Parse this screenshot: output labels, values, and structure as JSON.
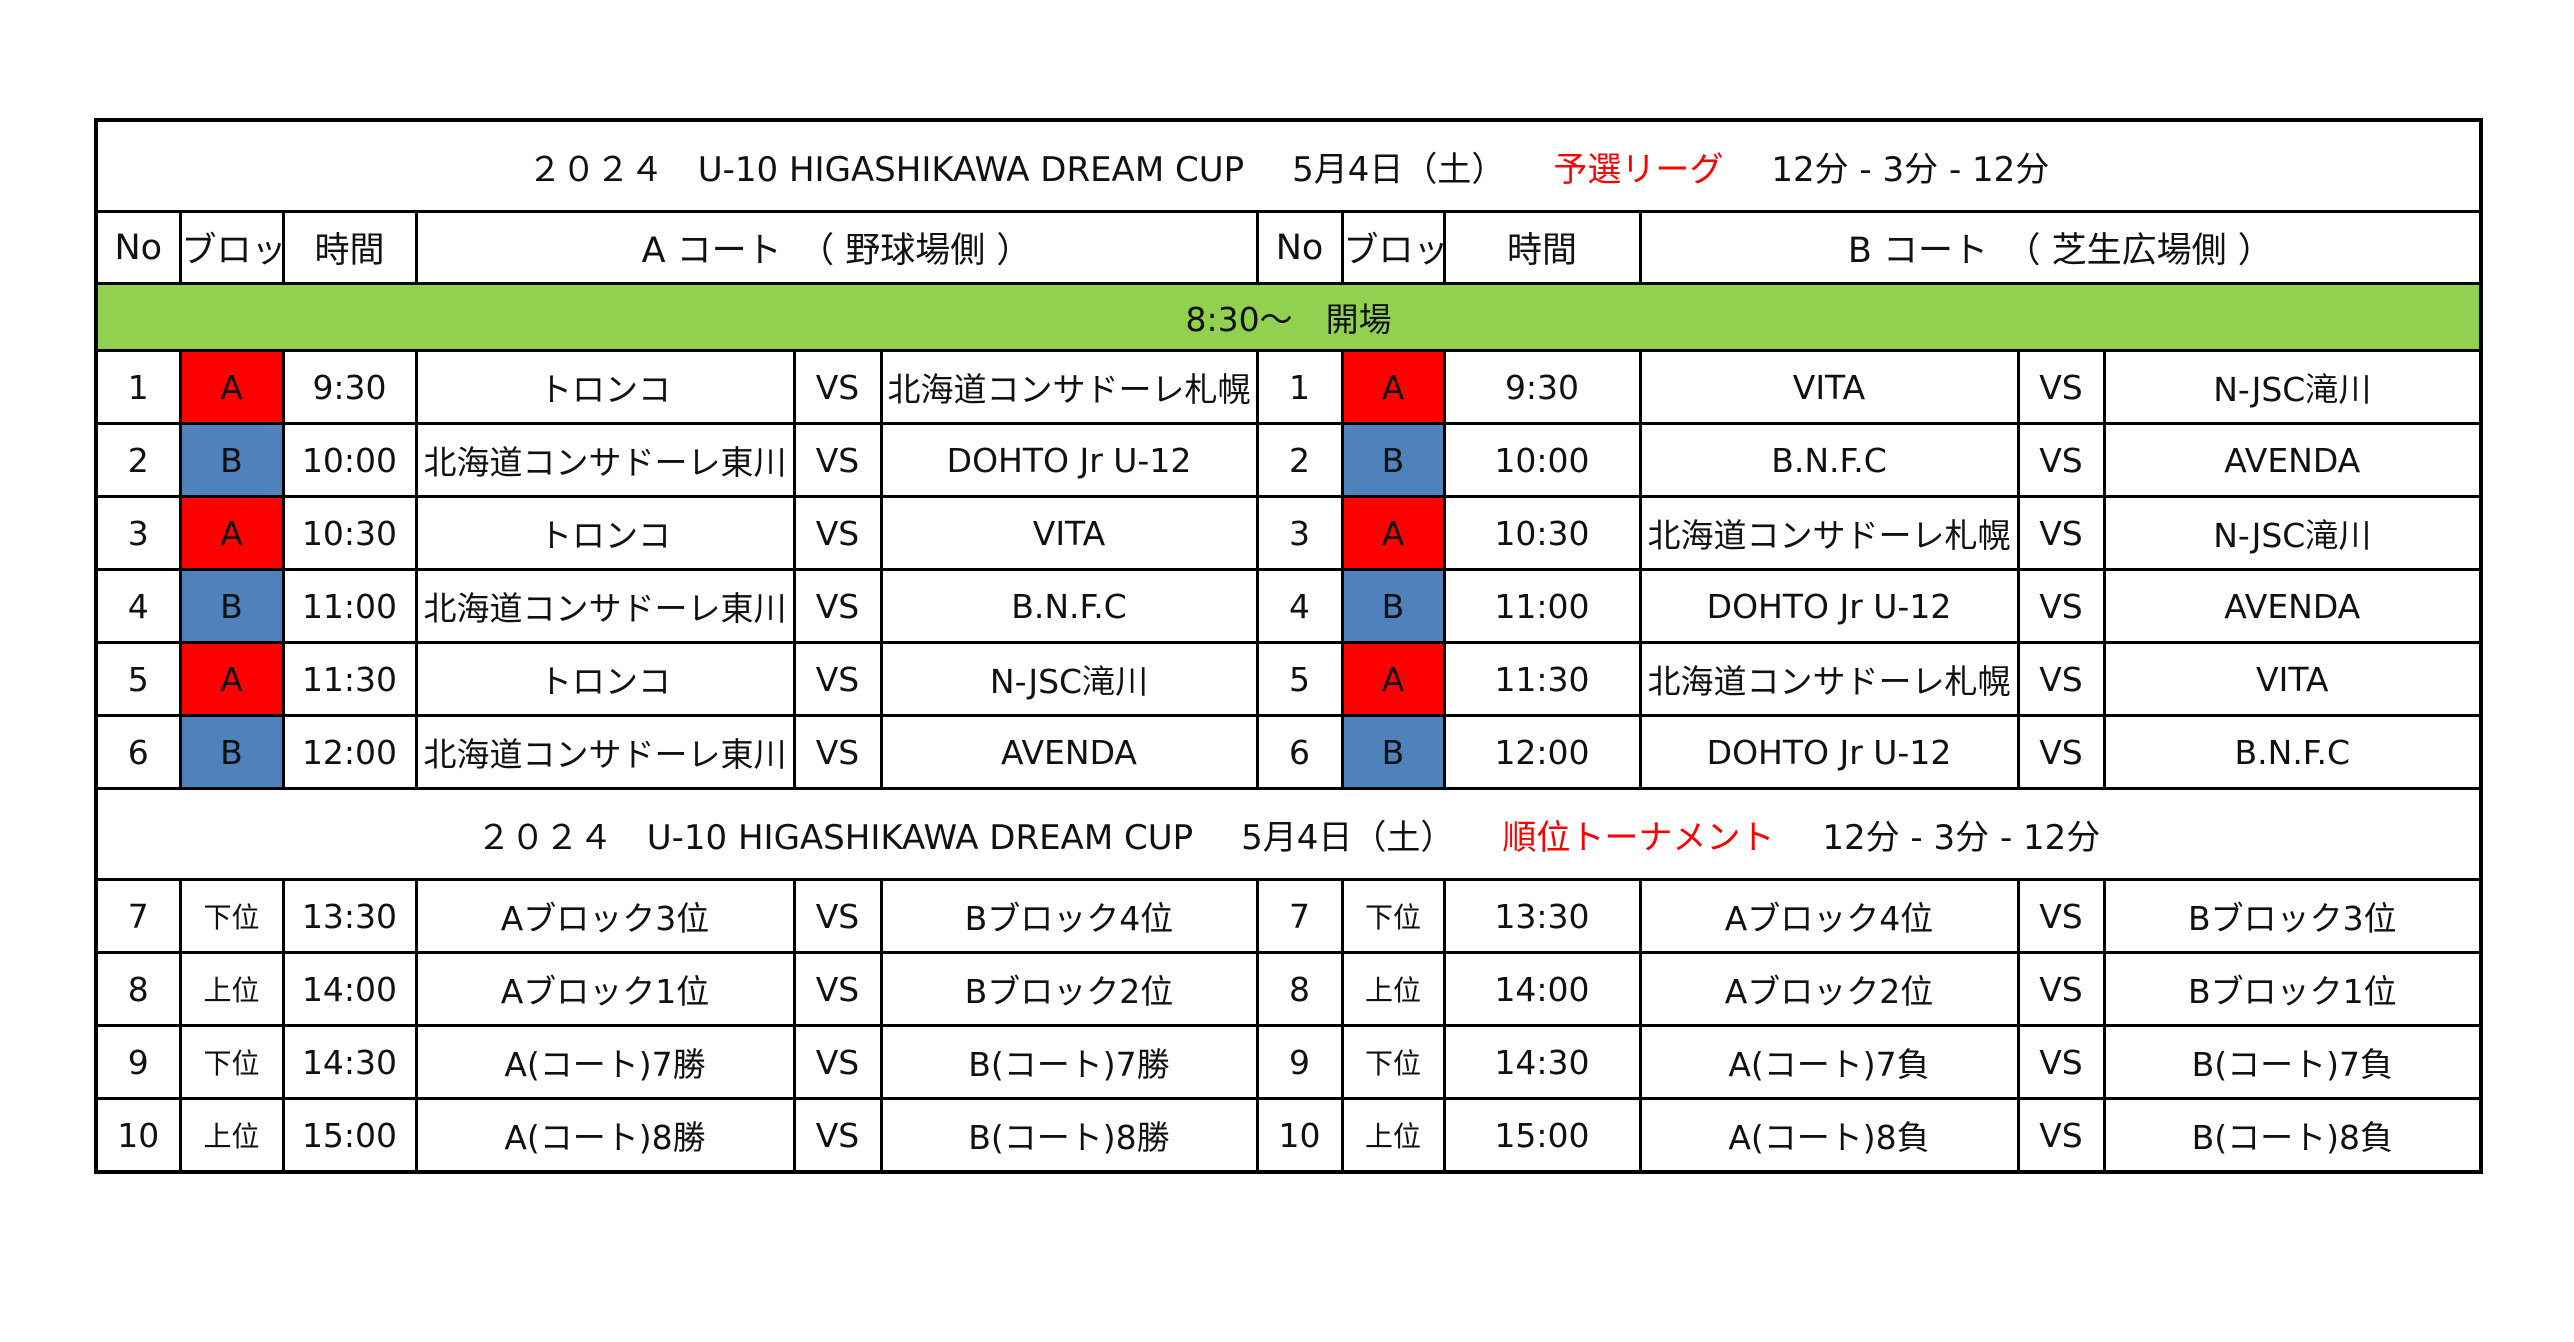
{
  "title1": {
    "event": "２０２４　U-10 HIGASHIKAWA DREAM CUP",
    "date": "5月4日（土）",
    "stage": "予選リーグ",
    "format": "12分 - 3分 - 12分"
  },
  "header": [
    "No",
    "ブロック",
    "時間",
    "A コート　（ 野球場側 ）",
    "No",
    "ブロック",
    "時間",
    "B コート　（ 芝生広場側 ）"
  ],
  "opening": "8:30～　開場",
  "league_rows": [
    {
      "a": [
        "1",
        "A",
        "9:30",
        "トロンコ",
        "VS",
        "北海道コンサドーレ札幌"
      ],
      "b": [
        "1",
        "A",
        "9:30",
        "VITA",
        "VS",
        "N-JSC滝川"
      ]
    },
    {
      "a": [
        "2",
        "B",
        "10:00",
        "北海道コンサドーレ東川",
        "VS",
        "DOHTO Jr U-12"
      ],
      "b": [
        "2",
        "B",
        "10:00",
        "B.N.F.C",
        "VS",
        "AVENDA"
      ]
    },
    {
      "a": [
        "3",
        "A",
        "10:30",
        "トロンコ",
        "VS",
        "VITA"
      ],
      "b": [
        "3",
        "A",
        "10:30",
        "北海道コンサドーレ札幌",
        "VS",
        "N-JSC滝川"
      ]
    },
    {
      "a": [
        "4",
        "B",
        "11:00",
        "北海道コンサドーレ東川",
        "VS",
        "B.N.F.C"
      ],
      "b": [
        "4",
        "B",
        "11:00",
        "DOHTO Jr U-12",
        "VS",
        "AVENDA"
      ]
    },
    {
      "a": [
        "5",
        "A",
        "11:30",
        "トロンコ",
        "VS",
        "N-JSC滝川"
      ],
      "b": [
        "5",
        "A",
        "11:30",
        "北海道コンサドーレ札幌",
        "VS",
        "VITA"
      ]
    },
    {
      "a": [
        "6",
        "B",
        "12:00",
        "北海道コンサドーレ東川",
        "VS",
        "AVENDA"
      ],
      "b": [
        "6",
        "B",
        "12:00",
        "DOHTO Jr U-12",
        "VS",
        "B.N.F.C"
      ]
    }
  ],
  "title2": {
    "event": "２０２４　U-10 HIGASHIKAWA DREAM CUP",
    "date": "5月4日（土）",
    "stage": "順位トーナメント",
    "format": "12分 - 3分 - 12分"
  },
  "tournament_rows": [
    {
      "a": [
        "7",
        "下位",
        "13:30",
        "Aブロック3位",
        "VS",
        "Bブロック4位"
      ],
      "b": [
        "7",
        "下位",
        "13:30",
        "Aブロック4位",
        "VS",
        "Bブロック3位"
      ]
    },
    {
      "a": [
        "8",
        "上位",
        "14:00",
        "Aブロック1位",
        "VS",
        "Bブロック2位"
      ],
      "b": [
        "8",
        "上位",
        "14:00",
        "Aブロック2位",
        "VS",
        "Bブロック1位"
      ]
    },
    {
      "a": [
        "9",
        "下位",
        "14:30",
        "A(コート)7勝",
        "VS",
        "B(コート)7勝"
      ],
      "b": [
        "9",
        "下位",
        "14:30",
        "A(コート)7負",
        "VS",
        "B(コート)7負"
      ]
    },
    {
      "a": [
        "10",
        "上位",
        "15:00",
        "A(コート)8勝",
        "VS",
        "B(コート)8勝"
      ],
      "b": [
        "10",
        "上位",
        "15:00",
        "A(コート)8負",
        "VS",
        "B(コート)8負"
      ]
    }
  ],
  "block_colors": {
    "A": "#ff0000",
    "B": "#4f81bd"
  },
  "opening_color": "#92d050",
  "stage_color": "#ff0000"
}
